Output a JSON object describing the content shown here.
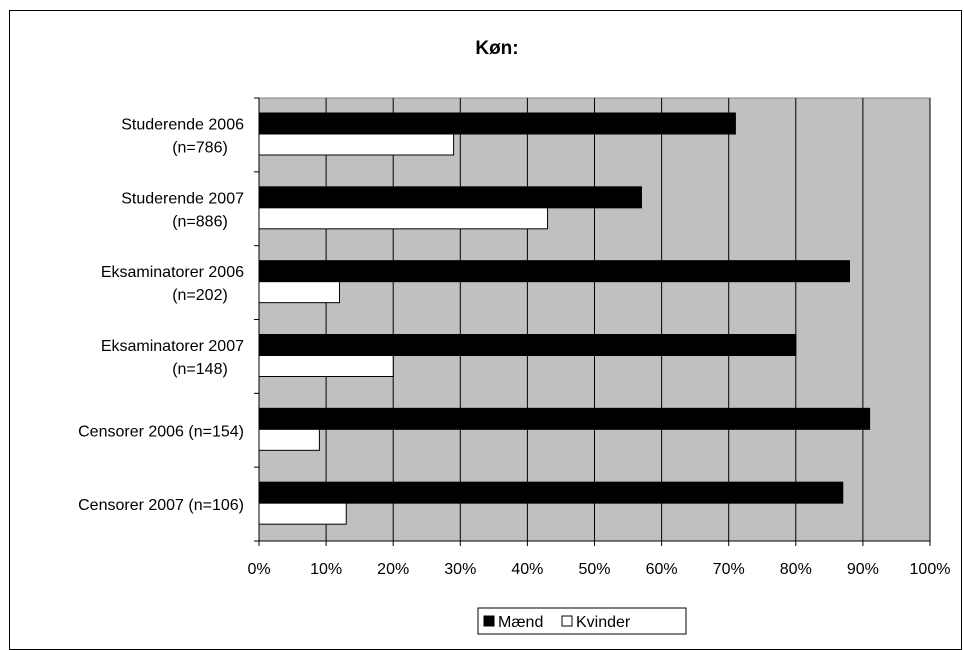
{
  "chart_data": {
    "type": "bar",
    "orientation": "horizontal",
    "title": "Køn:",
    "categories": [
      [
        "Studerende 2006",
        "(n=786)"
      ],
      [
        "Studerende 2007",
        "(n=886)"
      ],
      [
        "Eksaminatorer 2006",
        "(n=202)"
      ],
      [
        "Eksaminatorer 2007",
        "(n=148)"
      ],
      [
        "Censorer  2006 (n=154)"
      ],
      [
        "Censorer  2007 (n=106)"
      ]
    ],
    "series": [
      {
        "name": "Mænd",
        "color": "#000000",
        "values": [
          71,
          57,
          88,
          80,
          91,
          87
        ]
      },
      {
        "name": "Kvinder",
        "color": "#ffffff",
        "values": [
          29,
          43,
          12,
          20,
          9,
          13
        ]
      }
    ],
    "xlim": [
      0,
      100
    ],
    "xticks": [
      0,
      10,
      20,
      30,
      40,
      50,
      60,
      70,
      80,
      90,
      100
    ],
    "xtick_labels": [
      "0%",
      "10%",
      "20%",
      "30%",
      "40%",
      "50%",
      "60%",
      "70%",
      "80%",
      "90%",
      "100%"
    ],
    "grid": true,
    "plot_background": "#c0c0c0",
    "legend_position": "bottom"
  }
}
